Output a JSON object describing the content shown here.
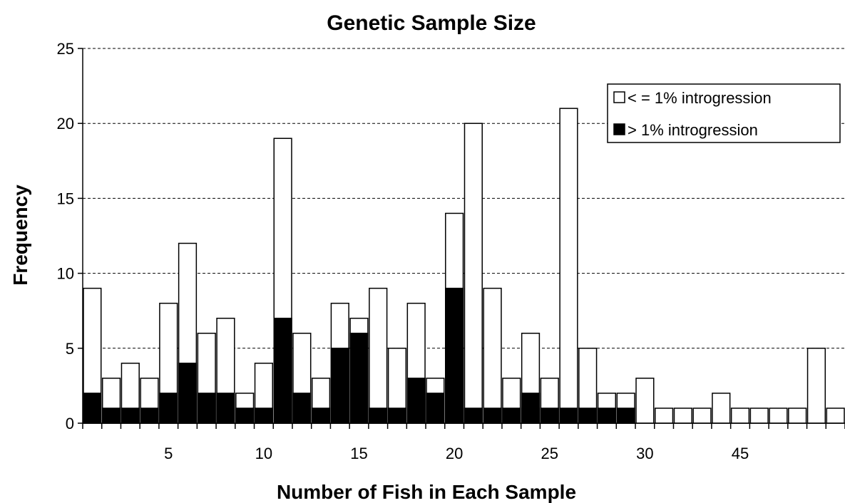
{
  "chart_data": {
    "type": "bar",
    "stacked": true,
    "title": "Genetic Sample Size",
    "xlabel": "Number of Fish in Each Sample",
    "ylabel": "Frequency",
    "ylim": [
      0,
      25
    ],
    "yticks": [
      0,
      5,
      10,
      15,
      20,
      25
    ],
    "grid": "horizontal dashed",
    "legend_position": "top-right",
    "x_tick_labels": [
      "",
      "",
      "",
      "",
      "5",
      "",
      "",
      "",
      "",
      "10",
      "",
      "",
      "",
      "",
      "15",
      "",
      "",
      "",
      "",
      "20",
      "",
      "",
      "",
      "",
      "25",
      "",
      "",
      "",
      "",
      "30",
      "",
      "",
      "",
      "",
      "45",
      "",
      "",
      "",
      "",
      ""
    ],
    "totals": [
      9,
      3,
      4,
      3,
      8,
      12,
      6,
      7,
      2,
      4,
      19,
      6,
      3,
      8,
      7,
      9,
      5,
      8,
      3,
      14,
      20,
      9,
      3,
      6,
      3,
      21,
      5,
      2,
      2,
      3,
      1,
      1,
      1,
      2,
      1,
      1,
      1,
      1,
      5,
      1
    ],
    "series": [
      {
        "name": "> 1% introgression",
        "color": "#000000",
        "values": [
          2,
          1,
          1,
          1,
          2,
          4,
          2,
          2,
          1,
          1,
          7,
          2,
          1,
          5,
          6,
          1,
          1,
          3,
          2,
          9,
          1,
          1,
          1,
          2,
          1,
          1,
          1,
          1,
          1,
          0,
          0,
          0,
          0,
          0,
          0,
          0,
          0,
          0,
          0,
          0
        ]
      },
      {
        "name": "< = 1% introgression",
        "color": "#ffffff",
        "values": [
          7,
          2,
          3,
          2,
          6,
          8,
          4,
          5,
          1,
          3,
          12,
          4,
          2,
          3,
          1,
          8,
          4,
          5,
          1,
          5,
          19,
          8,
          2,
          4,
          2,
          20,
          4,
          1,
          1,
          3,
          1,
          1,
          1,
          2,
          1,
          1,
          1,
          1,
          5,
          1
        ]
      }
    ]
  },
  "legend": {
    "items": [
      {
        "label": "< = 1% introgression",
        "color": "#ffffff"
      },
      {
        "label": "> 1% introgression",
        "color": "#000000"
      }
    ]
  }
}
